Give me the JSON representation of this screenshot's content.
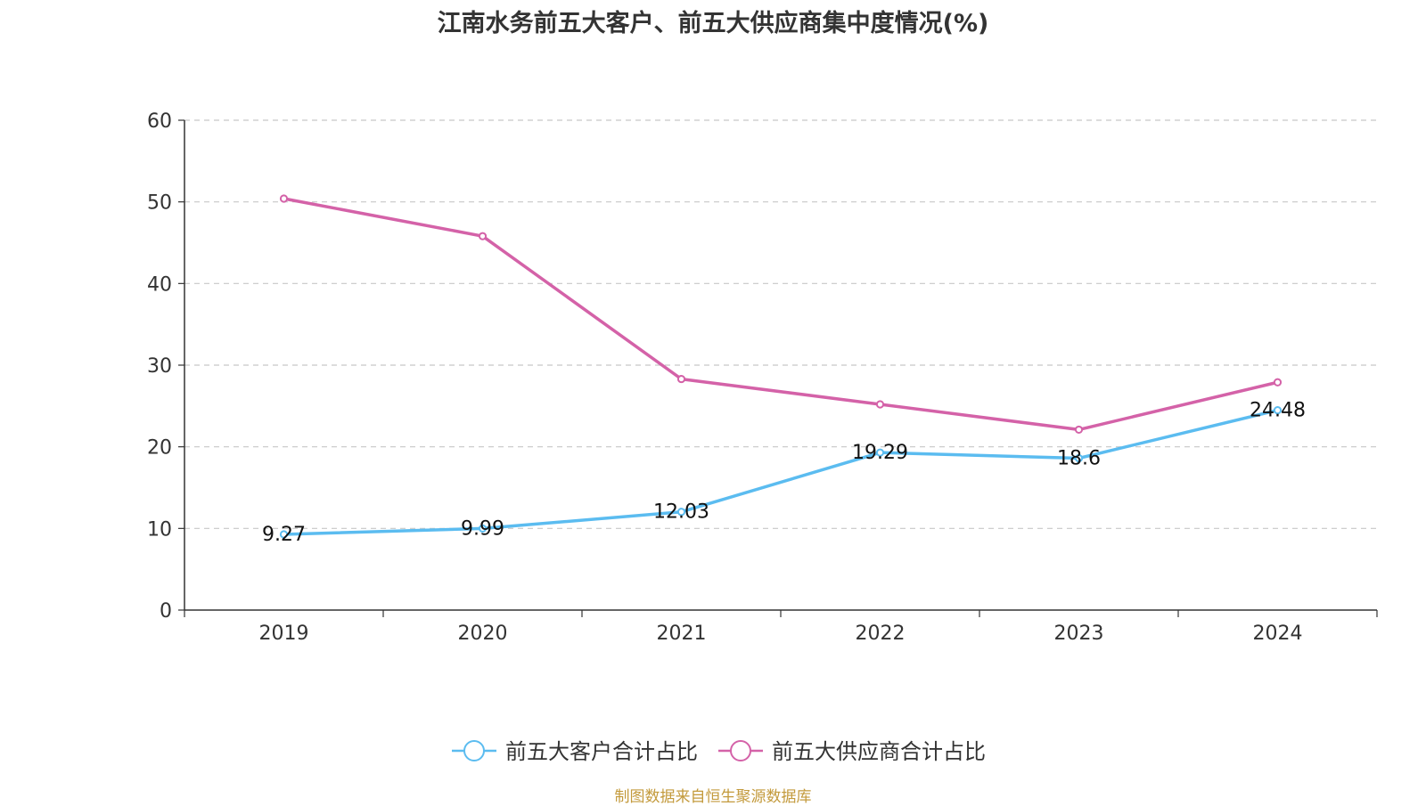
{
  "chart_data": {
    "type": "line",
    "title": "江南水务前五大客户、前五大供应商集中度情况(%)",
    "categories": [
      "2019",
      "2020",
      "2021",
      "2022",
      "2023",
      "2024"
    ],
    "series": [
      {
        "name": "前五大客户合计占比",
        "values": [
          9.27,
          9.99,
          12.03,
          19.29,
          18.6,
          24.48
        ],
        "labels": [
          "9.27",
          "9.99",
          "12.03",
          "19.29",
          "18.6",
          "24.48"
        ],
        "color": "#5bbcf0"
      },
      {
        "name": "前五大供应商合计占比",
        "values": [
          50.4,
          45.8,
          28.3,
          25.2,
          22.1,
          27.9
        ],
        "color": "#d462a8"
      }
    ],
    "ylim": [
      0,
      60
    ],
    "yticks": [
      "0",
      "10",
      "20",
      "30",
      "40",
      "50",
      "60"
    ],
    "grid": true,
    "legend": "bottom"
  },
  "source": "制图数据来自恒生聚源数据库"
}
